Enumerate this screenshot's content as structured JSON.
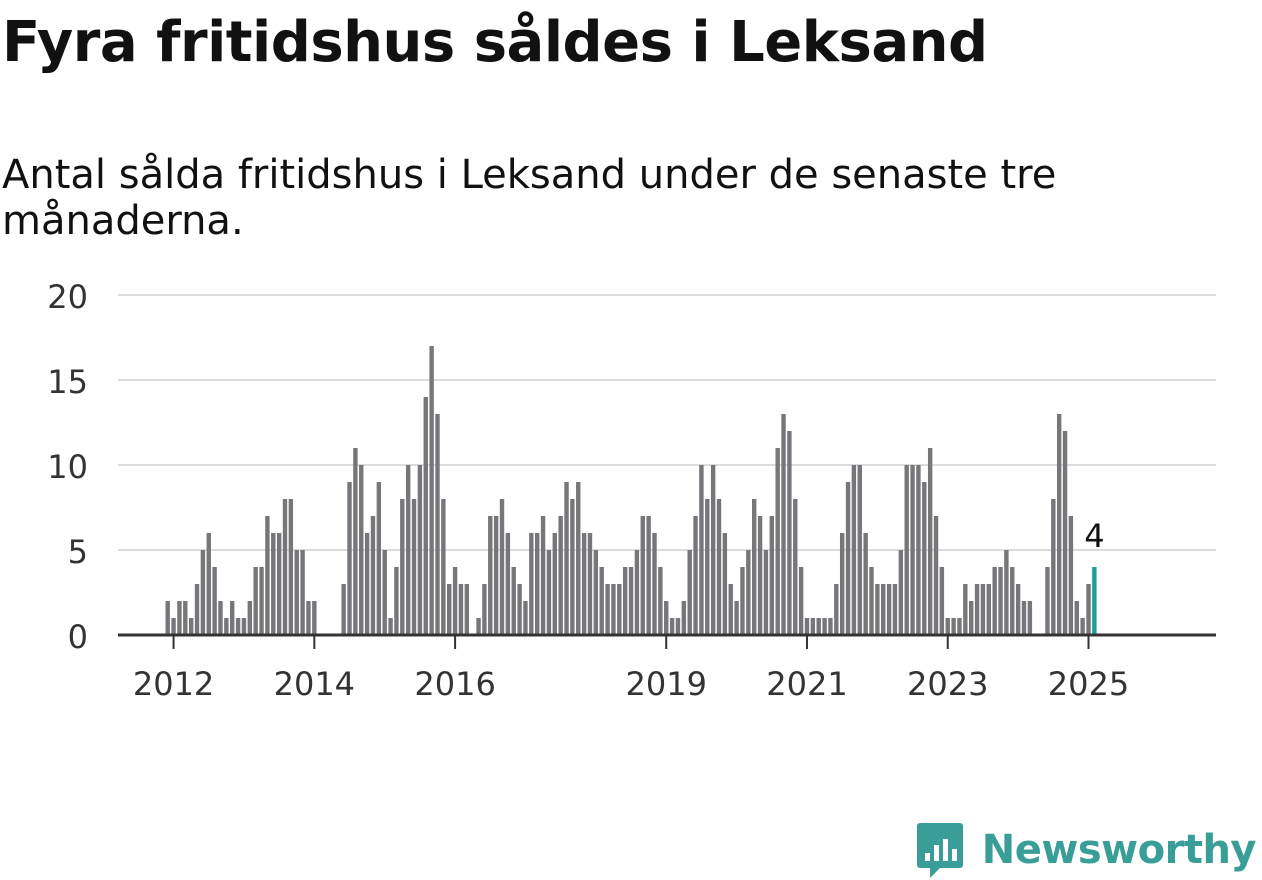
{
  "header": {
    "title": "Fyra fritidshus såldes i Leksand",
    "subtitle": "Antal sålda fritidshus i Leksand under de senaste tre månaderna."
  },
  "brand": {
    "name": "Newsworthy",
    "icon": "newsworthy-logo-icon",
    "color": "#3a9e98"
  },
  "colors": {
    "bar": "#77767b",
    "highlight": "#1c9e97",
    "grid": "#dcdcdc",
    "axis": "#333333"
  },
  "chart_data": {
    "type": "bar",
    "title": "Fyra fritidshus såldes i Leksand",
    "subtitle": "Antal sålda fritidshus i Leksand under de senaste tre månaderna.",
    "xlabel": "",
    "ylabel": "",
    "ylim": [
      0,
      20
    ],
    "yticks": [
      0,
      5,
      10,
      15,
      20
    ],
    "grid": true,
    "x_start": "2011-12",
    "x_end": "2025-02",
    "xticks": [
      {
        "label": "2012",
        "month": "2012-01"
      },
      {
        "label": "2014",
        "month": "2014-01"
      },
      {
        "label": "2016",
        "month": "2016-01"
      },
      {
        "label": "2019",
        "month": "2019-01"
      },
      {
        "label": "2021",
        "month": "2021-01"
      },
      {
        "label": "2023",
        "month": "2023-01"
      },
      {
        "label": "2025",
        "month": "2025-01"
      }
    ],
    "values": [
      2,
      1,
      2,
      2,
      1,
      3,
      5,
      6,
      4,
      2,
      1,
      2,
      1,
      1,
      2,
      4,
      4,
      7,
      6,
      6,
      8,
      8,
      5,
      5,
      2,
      2,
      0,
      0,
      0,
      0,
      3,
      9,
      11,
      10,
      6,
      7,
      9,
      5,
      1,
      4,
      8,
      10,
      8,
      10,
      14,
      17,
      13,
      8,
      3,
      4,
      3,
      3,
      0,
      1,
      3,
      7,
      7,
      8,
      6,
      4,
      3,
      2,
      6,
      6,
      7,
      5,
      6,
      7,
      9,
      8,
      9,
      6,
      6,
      5,
      4,
      3,
      3,
      3,
      4,
      4,
      5,
      7,
      7,
      6,
      4,
      2,
      1,
      1,
      2,
      5,
      7,
      10,
      8,
      10,
      8,
      6,
      3,
      2,
      4,
      5,
      8,
      7,
      5,
      7,
      11,
      13,
      12,
      8,
      4,
      1,
      1,
      1,
      1,
      1,
      3,
      6,
      9,
      10,
      10,
      6,
      4,
      3,
      3,
      3,
      3,
      5,
      10,
      10,
      10,
      9,
      11,
      7,
      4,
      1,
      1,
      1,
      3,
      2,
      3,
      3,
      3,
      4,
      4,
      5,
      4,
      3,
      2,
      2,
      0,
      0,
      4,
      8,
      13,
      12,
      7,
      2,
      1,
      3,
      4
    ],
    "highlight_index": 158,
    "annotation": "4"
  }
}
